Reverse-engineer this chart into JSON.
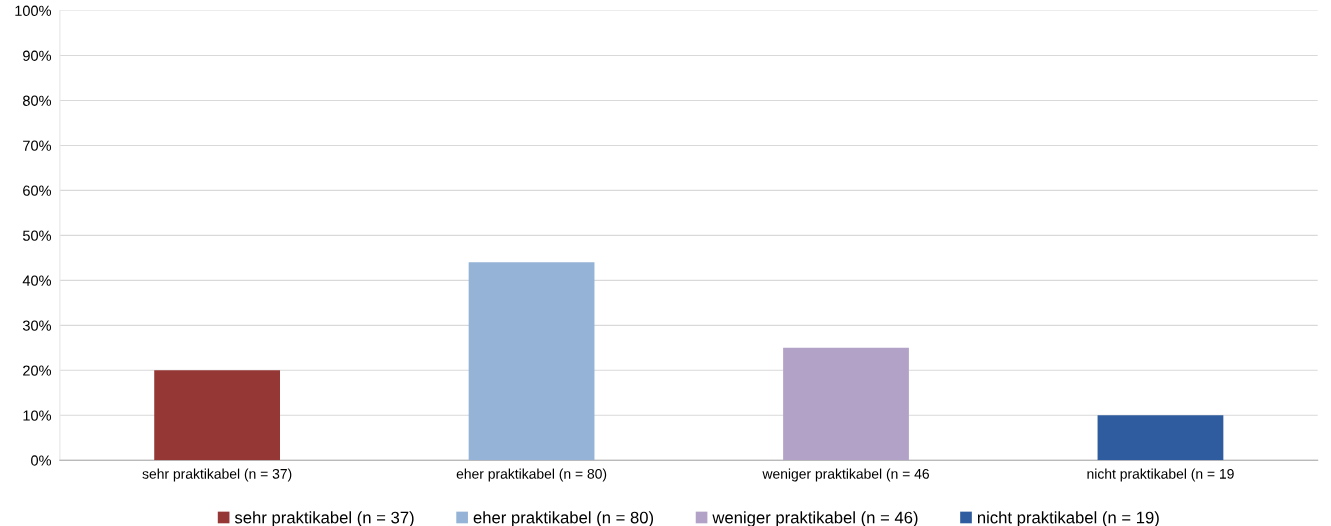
{
  "chart_data": {
    "type": "bar",
    "categories": [
      "sehr praktikabel (n = 37)",
      "eher praktikabel (n = 80)",
      "weniger praktikabel (n = 46",
      "nicht praktikabel (n = 19"
    ],
    "series": [
      {
        "name": "sehr praktikabel (n = 37)",
        "color": "#953735",
        "values": [
          20,
          null,
          null,
          null
        ]
      },
      {
        "name": "eher praktikabel (n = 80)",
        "color": "#95b3d7",
        "values": [
          null,
          44,
          null,
          null
        ]
      },
      {
        "name": "weniger praktikabel (n = 46)",
        "color": "#b3a2c7",
        "values": [
          null,
          null,
          25,
          null
        ]
      },
      {
        "name": "nicht praktikabel (n = 19)",
        "color": "#2e5c9e",
        "values": [
          null,
          null,
          null,
          10
        ]
      }
    ],
    "ylim": [
      0,
      100
    ],
    "yticks": [
      {
        "value": 0,
        "label": "0%"
      },
      {
        "value": 10,
        "label": "10%"
      },
      {
        "value": 20,
        "label": "20%"
      },
      {
        "value": 30,
        "label": "30%"
      },
      {
        "value": 40,
        "label": "40%"
      },
      {
        "value": 50,
        "label": "50%"
      },
      {
        "value": 60,
        "label": "60%"
      },
      {
        "value": 70,
        "label": "70%"
      },
      {
        "value": 80,
        "label": "80%"
      },
      {
        "value": 90,
        "label": "90%"
      },
      {
        "value": 100,
        "label": "100%"
      }
    ],
    "grid": "y",
    "legend": "bottom"
  }
}
